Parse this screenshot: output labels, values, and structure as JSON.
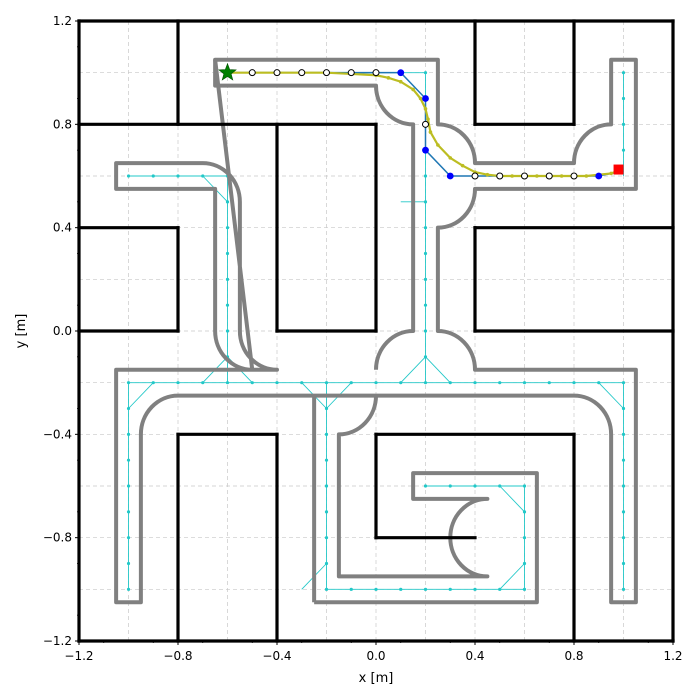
{
  "chart_data": {
    "type": "line",
    "xlabel": "x [m]",
    "ylabel": "y [m]",
    "xlim": [
      -1.2,
      1.2
    ],
    "ylim": [
      -1.2,
      1.2
    ],
    "xticks": [
      -1.2,
      -0.8,
      -0.4,
      0.0,
      0.4,
      0.8,
      1.2
    ],
    "yticks": [
      -1.2,
      -0.8,
      -0.4,
      0.0,
      0.4,
      0.8,
      1.2
    ],
    "xtick_labels": [
      "−1.2",
      "−0.8",
      "−0.4",
      "0.0",
      "0.4",
      "0.8",
      "1.2"
    ],
    "ytick_labels": [
      "−1.2",
      "−0.8",
      "−0.4",
      "0.0",
      "0.4",
      "0.8",
      "1.2"
    ],
    "grid": true,
    "colors": {
      "walls": "#000000",
      "corridor": "#808080",
      "graph": "#22c8c8",
      "path": "#1f77b4",
      "waypoints": "#0000ff",
      "smoothed": "#bcbd22",
      "start": "#008000",
      "goal": "#ff0000"
    },
    "walls": [
      [
        [
          -1.2,
          1.2
        ],
        [
          1.2,
          1.2
        ]
      ],
      [
        [
          -1.2,
          -1.2
        ],
        [
          1.2,
          -1.2
        ]
      ],
      [
        [
          -1.2,
          -1.2
        ],
        [
          -1.2,
          1.2
        ]
      ],
      [
        [
          1.2,
          -1.2
        ],
        [
          1.2,
          1.2
        ]
      ],
      [
        [
          -0.8,
          1.2
        ],
        [
          -0.8,
          0.8
        ]
      ],
      [
        [
          -1.2,
          0.8
        ],
        [
          0.0,
          0.8
        ]
      ],
      [
        [
          -0.4,
          0.8
        ],
        [
          -0.4,
          0.0
        ]
      ],
      [
        [
          -0.4,
          0.0
        ],
        [
          0.0,
          0.0
        ]
      ],
      [
        [
          0.0,
          0.0
        ],
        [
          0.0,
          0.8
        ]
      ],
      [
        [
          -1.2,
          0.4
        ],
        [
          -0.8,
          0.4
        ]
      ],
      [
        [
          -0.8,
          0.4
        ],
        [
          -0.8,
          0.0
        ]
      ],
      [
        [
          -0.8,
          0.0
        ],
        [
          -1.2,
          0.0
        ]
      ],
      [
        [
          0.4,
          1.2
        ],
        [
          0.4,
          0.8
        ]
      ],
      [
        [
          0.4,
          0.8
        ],
        [
          0.8,
          0.8
        ]
      ],
      [
        [
          0.8,
          0.8
        ],
        [
          0.8,
          1.2
        ]
      ],
      [
        [
          0.4,
          0.0
        ],
        [
          0.4,
          0.4
        ]
      ],
      [
        [
          0.4,
          0.4
        ],
        [
          1.2,
          0.4
        ]
      ],
      [
        [
          0.4,
          0.0
        ],
        [
          1.2,
          0.0
        ]
      ],
      [
        [
          -0.8,
          -1.2
        ],
        [
          -0.8,
          -0.4
        ]
      ],
      [
        [
          -0.8,
          -0.4
        ],
        [
          -0.4,
          -0.4
        ]
      ],
      [
        [
          -0.4,
          -0.4
        ],
        [
          -0.4,
          -1.2
        ]
      ],
      [
        [
          0.0,
          -0.4
        ],
        [
          0.8,
          -0.4
        ]
      ],
      [
        [
          0.8,
          -0.4
        ],
        [
          0.8,
          -1.2
        ]
      ],
      [
        [
          0.0,
          -0.4
        ],
        [
          0.0,
          -0.8
        ]
      ],
      [
        [
          0.0,
          -0.8
        ],
        [
          0.4,
          -0.8
        ]
      ]
    ],
    "corridors": [
      "M -0.65 1.05 L 0.25 1.05 L 0.25 0.8 A 0.15 0.15 0 0 0 0.4 0.65 L 0.8 0.65 A 0.15 0.15 0 0 0 0.95 0.8 L 0.95 1.05 L 1.05 1.05 L 1.05 0.55 L 0.4 0.55 A 0.15 0.15 0 0 0 0.25 0.4 L 0.25 0.0 A 0.15 0.15 0 0 0 0.4 -0.15 L 1.05 -0.15 L 1.05 -1.05 L 0.95 -1.05 L 0.95 -0.4 A 0.15 0.15 0 0 1 0.8 -0.25 L -0.8 -0.25 A 0.15 0.15 0 0 1 -0.95 -0.4 L -0.95 -1.05 L -1.05 -1.05 L -1.05 -0.15 L -0.4 -0.15 A 0.15 0.15 0 0 0 -0.55 0.0 L -0.55 0.5 A 0.15 0.15 0 0 1 -0.7 0.65 L -1.05 0.65 L -1.05 0.55 L -0.65 0.55 L -0.65 0.0 A 0.15 0.15 0 0 1 -0.5 -0.15 Z",
      "M -0.65 1.05 L -0.65 0.95 L 0.0 0.95 A 0.15 0.15 0 0 1 0.15 0.8 L 0.15 0.0 A 0.15 0.15 0 0 1 0.0 -0.15",
      "M -0.25 -1.05 L 0.65 -1.05 L 0.65 -0.55 L 0.15 -0.55 L 0.15 -0.65 L 0.45 -0.65 A 0.15 0.15 0 0 1 0.45 -0.95 L -0.15 -0.95 L -0.15 -0.4 A 0.15 0.15 0 0 1 0.0 -0.25",
      "M -0.25 -1.05 L -0.25 -0.25"
    ],
    "graph_nodes": [
      [
        -0.5,
        1.0
      ],
      [
        -0.4,
        1.0
      ],
      [
        -0.3,
        1.0
      ],
      [
        -0.2,
        1.0
      ],
      [
        -0.1,
        1.0
      ],
      [
        0.0,
        1.0
      ],
      [
        0.1,
        1.0
      ],
      [
        0.2,
        1.0
      ],
      [
        0.2,
        0.9
      ],
      [
        0.2,
        0.8
      ],
      [
        0.2,
        0.7
      ],
      [
        0.2,
        0.6
      ],
      [
        0.2,
        0.5
      ],
      [
        0.2,
        0.4
      ],
      [
        0.2,
        0.3
      ],
      [
        0.2,
        0.2
      ],
      [
        0.2,
        0.1
      ],
      [
        0.2,
        0.0
      ],
      [
        0.2,
        -0.1
      ],
      [
        1.0,
        1.0
      ],
      [
        1.0,
        0.9
      ],
      [
        1.0,
        0.8
      ],
      [
        1.0,
        0.7
      ],
      [
        -1.0,
        0.6
      ],
      [
        -0.9,
        0.6
      ],
      [
        -0.8,
        0.6
      ],
      [
        -0.7,
        0.6
      ],
      [
        -0.6,
        0.6
      ],
      [
        -0.6,
        0.5
      ],
      [
        -0.6,
        0.4
      ],
      [
        -0.6,
        0.3
      ],
      [
        -0.6,
        0.2
      ],
      [
        -0.6,
        0.1
      ],
      [
        -0.6,
        0.0
      ],
      [
        -0.6,
        -0.1
      ],
      [
        -1.0,
        -0.2
      ],
      [
        -0.9,
        -0.2
      ],
      [
        -0.8,
        -0.2
      ],
      [
        -0.7,
        -0.2
      ],
      [
        -0.6,
        -0.2
      ],
      [
        -0.5,
        -0.2
      ],
      [
        -0.4,
        -0.2
      ],
      [
        -0.3,
        -0.2
      ],
      [
        -0.2,
        -0.2
      ],
      [
        -0.1,
        -0.2
      ],
      [
        0.0,
        -0.2
      ],
      [
        0.1,
        -0.2
      ],
      [
        0.2,
        -0.2
      ],
      [
        0.3,
        -0.2
      ],
      [
        0.4,
        -0.2
      ],
      [
        0.5,
        -0.2
      ],
      [
        0.6,
        -0.2
      ],
      [
        0.7,
        -0.2
      ],
      [
        0.8,
        -0.2
      ],
      [
        0.9,
        -0.2
      ],
      [
        1.0,
        -0.2
      ],
      [
        -1.0,
        -0.3
      ],
      [
        -1.0,
        -0.4
      ],
      [
        -1.0,
        -0.5
      ],
      [
        -1.0,
        -0.6
      ],
      [
        -1.0,
        -0.7
      ],
      [
        -1.0,
        -0.8
      ],
      [
        -1.0,
        -0.9
      ],
      [
        -1.0,
        -1.0
      ],
      [
        1.0,
        -0.3
      ],
      [
        1.0,
        -0.4
      ],
      [
        1.0,
        -0.5
      ],
      [
        1.0,
        -0.6
      ],
      [
        1.0,
        -0.7
      ],
      [
        1.0,
        -0.8
      ],
      [
        1.0,
        -0.9
      ],
      [
        1.0,
        -1.0
      ],
      [
        -0.2,
        -0.3
      ],
      [
        -0.2,
        -0.4
      ],
      [
        -0.2,
        -0.5
      ],
      [
        -0.2,
        -0.6
      ],
      [
        -0.2,
        -0.7
      ],
      [
        -0.2,
        -0.8
      ],
      [
        -0.2,
        -0.9
      ],
      [
        -0.2,
        -1.0
      ],
      [
        -0.1,
        -1.0
      ],
      [
        0.0,
        -1.0
      ],
      [
        0.1,
        -1.0
      ],
      [
        0.2,
        -1.0
      ],
      [
        0.3,
        -1.0
      ],
      [
        0.4,
        -1.0
      ],
      [
        0.5,
        -1.0
      ],
      [
        0.6,
        -1.0
      ],
      [
        0.2,
        -0.6
      ],
      [
        0.3,
        -0.6
      ],
      [
        0.4,
        -0.6
      ],
      [
        0.5,
        -0.6
      ],
      [
        0.6,
        -0.6
      ],
      [
        0.6,
        -0.7
      ],
      [
        0.6,
        -0.8
      ],
      [
        0.6,
        -0.9
      ]
    ],
    "graph_edges": [
      [
        [
          -0.5,
          1.0
        ],
        [
          0.2,
          1.0
        ]
      ],
      [
        [
          0.2,
          1.0
        ],
        [
          0.2,
          -0.2
        ]
      ],
      [
        [
          1.0,
          1.0
        ],
        [
          1.0,
          0.6
        ]
      ],
      [
        [
          -1.0,
          0.6
        ],
        [
          -0.6,
          0.6
        ]
      ],
      [
        [
          -0.6,
          0.6
        ],
        [
          -0.6,
          -0.2
        ]
      ],
      [
        [
          -0.7,
          0.6
        ],
        [
          -0.6,
          0.5
        ]
      ],
      [
        [
          -1.0,
          -0.2
        ],
        [
          1.0,
          -0.2
        ]
      ],
      [
        [
          -1.0,
          -0.2
        ],
        [
          -1.0,
          -1.0
        ]
      ],
      [
        [
          1.0,
          -0.2
        ],
        [
          1.0,
          -1.0
        ]
      ],
      [
        [
          -0.2,
          -0.2
        ],
        [
          -0.2,
          -1.0
        ]
      ],
      [
        [
          -0.2,
          -1.0
        ],
        [
          0.6,
          -1.0
        ]
      ],
      [
        [
          0.2,
          -0.6
        ],
        [
          0.6,
          -0.6
        ]
      ],
      [
        [
          0.6,
          -0.6
        ],
        [
          0.6,
          -1.0
        ]
      ],
      [
        [
          -0.9,
          -0.2
        ],
        [
          -1.0,
          -0.3
        ]
      ],
      [
        [
          0.9,
          -0.2
        ],
        [
          1.0,
          -0.3
        ]
      ],
      [
        [
          -0.3,
          -0.2
        ],
        [
          -0.2,
          -0.3
        ]
      ],
      [
        [
          -0.1,
          -0.2
        ],
        [
          -0.2,
          -0.3
        ]
      ],
      [
        [
          -0.7,
          -0.2
        ],
        [
          -0.6,
          -0.1
        ]
      ],
      [
        [
          -0.5,
          -0.2
        ],
        [
          -0.6,
          -0.1
        ]
      ],
      [
        [
          0.1,
          -0.2
        ],
        [
          0.2,
          -0.1
        ]
      ],
      [
        [
          0.3,
          -0.2
        ],
        [
          0.2,
          -0.1
        ]
      ],
      [
        [
          -0.3,
          -1.0
        ],
        [
          -0.2,
          -0.9
        ]
      ],
      [
        [
          0.5,
          -0.6
        ],
        [
          0.6,
          -0.7
        ]
      ],
      [
        [
          0.5,
          -1.0
        ],
        [
          0.6,
          -0.9
        ]
      ],
      [
        [
          0.1,
          0.5
        ],
        [
          0.2,
          0.5
        ]
      ]
    ],
    "series": [
      {
        "type": "line",
        "x": [
          -0.6,
          -0.5,
          -0.4,
          -0.3,
          -0.2,
          -0.1,
          0.0,
          0.1,
          0.2,
          0.2,
          0.3,
          0.4,
          0.5,
          0.6,
          0.7,
          0.8,
          0.9,
          1.0
        ],
        "y": [
          1.0,
          1.0,
          1.0,
          1.0,
          1.0,
          1.0,
          1.0,
          1.0,
          0.9,
          0.7,
          0.6,
          0.6,
          0.6,
          0.6,
          0.6,
          0.6,
          0.6,
          0.62
        ]
      },
      {
        "type": "line",
        "x": [
          -0.6,
          -0.5,
          -0.4,
          -0.3,
          -0.2,
          -0.1,
          0.0,
          0.05,
          0.1,
          0.15,
          0.18,
          0.2,
          0.21,
          0.22,
          0.25,
          0.3,
          0.35,
          0.4,
          0.45,
          0.5,
          0.55,
          0.6,
          0.65,
          0.7,
          0.75,
          0.8,
          0.85,
          0.9,
          0.95,
          0.98
        ],
        "y": [
          1.0,
          1.0,
          1.0,
          1.0,
          1.0,
          0.995,
          0.99,
          0.98,
          0.965,
          0.935,
          0.9,
          0.86,
          0.82,
          0.77,
          0.72,
          0.67,
          0.64,
          0.615,
          0.605,
          0.6,
          0.6,
          0.6,
          0.6,
          0.6,
          0.6,
          0.6,
          0.6,
          0.605,
          0.61,
          0.62
        ]
      }
    ],
    "waypoints_filled": [
      [
        0.1,
        1.0
      ],
      [
        0.2,
        0.9
      ],
      [
        0.2,
        0.7
      ],
      [
        0.3,
        0.6
      ],
      [
        0.9,
        0.6
      ]
    ],
    "waypoints_open": [
      [
        -0.5,
        1.0
      ],
      [
        -0.4,
        1.0
      ],
      [
        -0.3,
        1.0
      ],
      [
        -0.2,
        1.0
      ],
      [
        -0.1,
        1.0
      ],
      [
        0.0,
        1.0
      ],
      [
        0.2,
        0.8
      ],
      [
        0.4,
        0.6
      ],
      [
        0.5,
        0.6
      ],
      [
        0.6,
        0.6
      ],
      [
        0.7,
        0.6
      ],
      [
        0.8,
        0.6
      ]
    ],
    "start": [
      -0.6,
      1.0
    ],
    "goal": [
      0.98,
      0.625
    ]
  }
}
